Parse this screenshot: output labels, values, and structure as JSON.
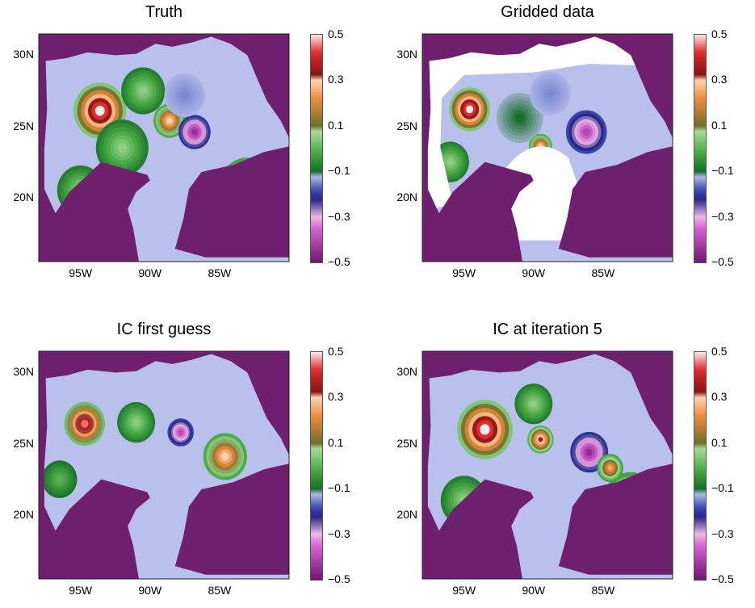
{
  "chart_data": [
    {
      "type": "heatmap",
      "title": "Truth",
      "x_ticks": [
        "95W",
        "90W",
        "85W"
      ],
      "y_ticks": [
        "30N",
        "25N",
        "20N"
      ],
      "colorbar": {
        "ticks": [
          "0.5",
          "0.3",
          "0.1",
          "−0.1",
          "−0.3",
          "−0.5"
        ],
        "range": [
          -0.5,
          0.5
        ]
      },
      "features": [
        {
          "lon": -93.6,
          "lat": 26.1,
          "value": 0.5,
          "r": 1.8
        },
        {
          "lon": -88.6,
          "lat": 25.4,
          "value": 0.3,
          "r": 1.1
        },
        {
          "lon": -86.8,
          "lat": 24.6,
          "value": -0.45,
          "r": 1.1
        },
        {
          "lon": -92.0,
          "lat": 23.5,
          "value": 0.05,
          "r": 1.8
        },
        {
          "lon": -95.0,
          "lat": 20.5,
          "value": 0.05,
          "r": 1.6
        },
        {
          "lon": -83.0,
          "lat": 20.6,
          "value": 0.25,
          "r": 2.0
        },
        {
          "lon": -90.5,
          "lat": 27.5,
          "value": 0.05,
          "r": 1.5
        },
        {
          "lon": -87.5,
          "lat": 27.2,
          "value": -0.15,
          "r": 1.4
        }
      ]
    },
    {
      "type": "heatmap",
      "title": "Gridded data",
      "x_ticks": [
        "95W",
        "90W",
        "85W"
      ],
      "y_ticks": [
        "30N",
        "25N",
        "20N"
      ],
      "colorbar": {
        "ticks": [
          "0.5",
          "0.3",
          "0.1",
          "−0.1",
          "−0.3",
          "−0.5"
        ],
        "range": [
          -0.5,
          0.5
        ]
      },
      "features": [
        {
          "lon": -94.6,
          "lat": 26.2,
          "value": 0.5,
          "r": 1.4
        },
        {
          "lon": -89.5,
          "lat": 23.6,
          "value": 0.3,
          "r": 0.8
        },
        {
          "lon": -86.2,
          "lat": 24.6,
          "value": -0.4,
          "r": 1.4
        },
        {
          "lon": -83.0,
          "lat": 20.4,
          "value": 0.25,
          "r": 1.8
        },
        {
          "lon": -91.0,
          "lat": 25.6,
          "value": -0.1,
          "r": 1.6
        },
        {
          "lon": -96.0,
          "lat": 22.5,
          "value": 0.05,
          "r": 1.3
        },
        {
          "lon": -88.8,
          "lat": 27.3,
          "value": -0.15,
          "r": 1.4
        }
      ]
    },
    {
      "type": "heatmap",
      "title": "IC first guess",
      "x_ticks": [
        "95W",
        "90W",
        "85W"
      ],
      "y_ticks": [
        "30N",
        "25N",
        "20N"
      ],
      "colorbar": {
        "ticks": [
          "0.5",
          "0.3",
          "0.1",
          "−0.1",
          "−0.3",
          "−0.5"
        ],
        "range": [
          -0.5,
          0.5
        ]
      },
      "features": [
        {
          "lon": -94.7,
          "lat": 26.4,
          "value": 0.45,
          "r": 1.4
        },
        {
          "lon": -91.0,
          "lat": 26.5,
          "value": 0.05,
          "r": 1.3
        },
        {
          "lon": -87.8,
          "lat": 25.8,
          "value": -0.4,
          "r": 0.9
        },
        {
          "lon": -84.6,
          "lat": 24.1,
          "value": 0.3,
          "r": 1.5
        },
        {
          "lon": -84.0,
          "lat": 20.5,
          "value": 0.25,
          "r": 1.5
        },
        {
          "lon": -94.2,
          "lat": 19.5,
          "value": 0.1,
          "r": 1.2
        },
        {
          "lon": -96.5,
          "lat": 22.5,
          "value": 0.0,
          "r": 1.2
        }
      ]
    },
    {
      "type": "heatmap",
      "title": "IC at iteration 5",
      "x_ticks": [
        "95W",
        "90W",
        "85W"
      ],
      "y_ticks": [
        "30N",
        "25N",
        "20N"
      ],
      "colorbar": {
        "ticks": [
          "0.5",
          "0.3",
          "0.1",
          "−0.1",
          "−0.3",
          "−0.5"
        ],
        "range": [
          -0.5,
          0.5
        ]
      },
      "features": [
        {
          "lon": -93.5,
          "lat": 26.0,
          "value": 0.5,
          "r": 1.9
        },
        {
          "lon": -89.5,
          "lat": 25.3,
          "value": 0.35,
          "r": 0.9
        },
        {
          "lon": -86.0,
          "lat": 24.4,
          "value": -0.45,
          "r": 1.3
        },
        {
          "lon": -83.0,
          "lat": 20.8,
          "value": 0.25,
          "r": 2.0
        },
        {
          "lon": -84.5,
          "lat": 23.3,
          "value": 0.25,
          "r": 0.9
        },
        {
          "lon": -95.0,
          "lat": 21.0,
          "value": 0.05,
          "r": 1.6
        },
        {
          "lon": -90.0,
          "lat": 27.8,
          "value": 0.05,
          "r": 1.3
        }
      ]
    }
  ]
}
